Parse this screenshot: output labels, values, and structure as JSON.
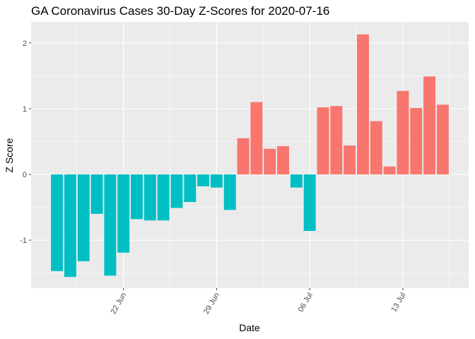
{
  "chart_data": {
    "type": "bar",
    "title": "GA Coronavirus Cases 30-Day Z-Scores for 2020-07-16",
    "x_label": "Date",
    "y_label": "Z Score",
    "categories": [
      null,
      null,
      null,
      null,
      null,
      "22 Jun",
      null,
      null,
      null,
      null,
      null,
      null,
      "29 Jun",
      null,
      null,
      null,
      null,
      null,
      null,
      "06 Jul",
      null,
      null,
      null,
      null,
      null,
      null,
      "13 Jul",
      null,
      null,
      null
    ],
    "values": [
      -1.47,
      -1.56,
      -1.32,
      -0.6,
      -1.54,
      -1.19,
      -0.68,
      -0.7,
      -0.7,
      -0.51,
      -0.42,
      -0.18,
      -0.2,
      -0.54,
      0.55,
      1.1,
      0.39,
      0.43,
      -0.2,
      -0.86,
      1.02,
      1.04,
      0.44,
      2.13,
      0.81,
      0.12,
      1.27,
      1.01,
      1.49,
      1.06
    ],
    "color_positive": "#F8766D",
    "color_negative": "#00BFC4",
    "ylim": [
      -1.73,
      2.32
    ],
    "yticks": [
      -1,
      0,
      1,
      2
    ],
    "y_minor_grid": [
      -1.5,
      -0.5,
      0.5,
      1.5
    ],
    "grid": true
  }
}
